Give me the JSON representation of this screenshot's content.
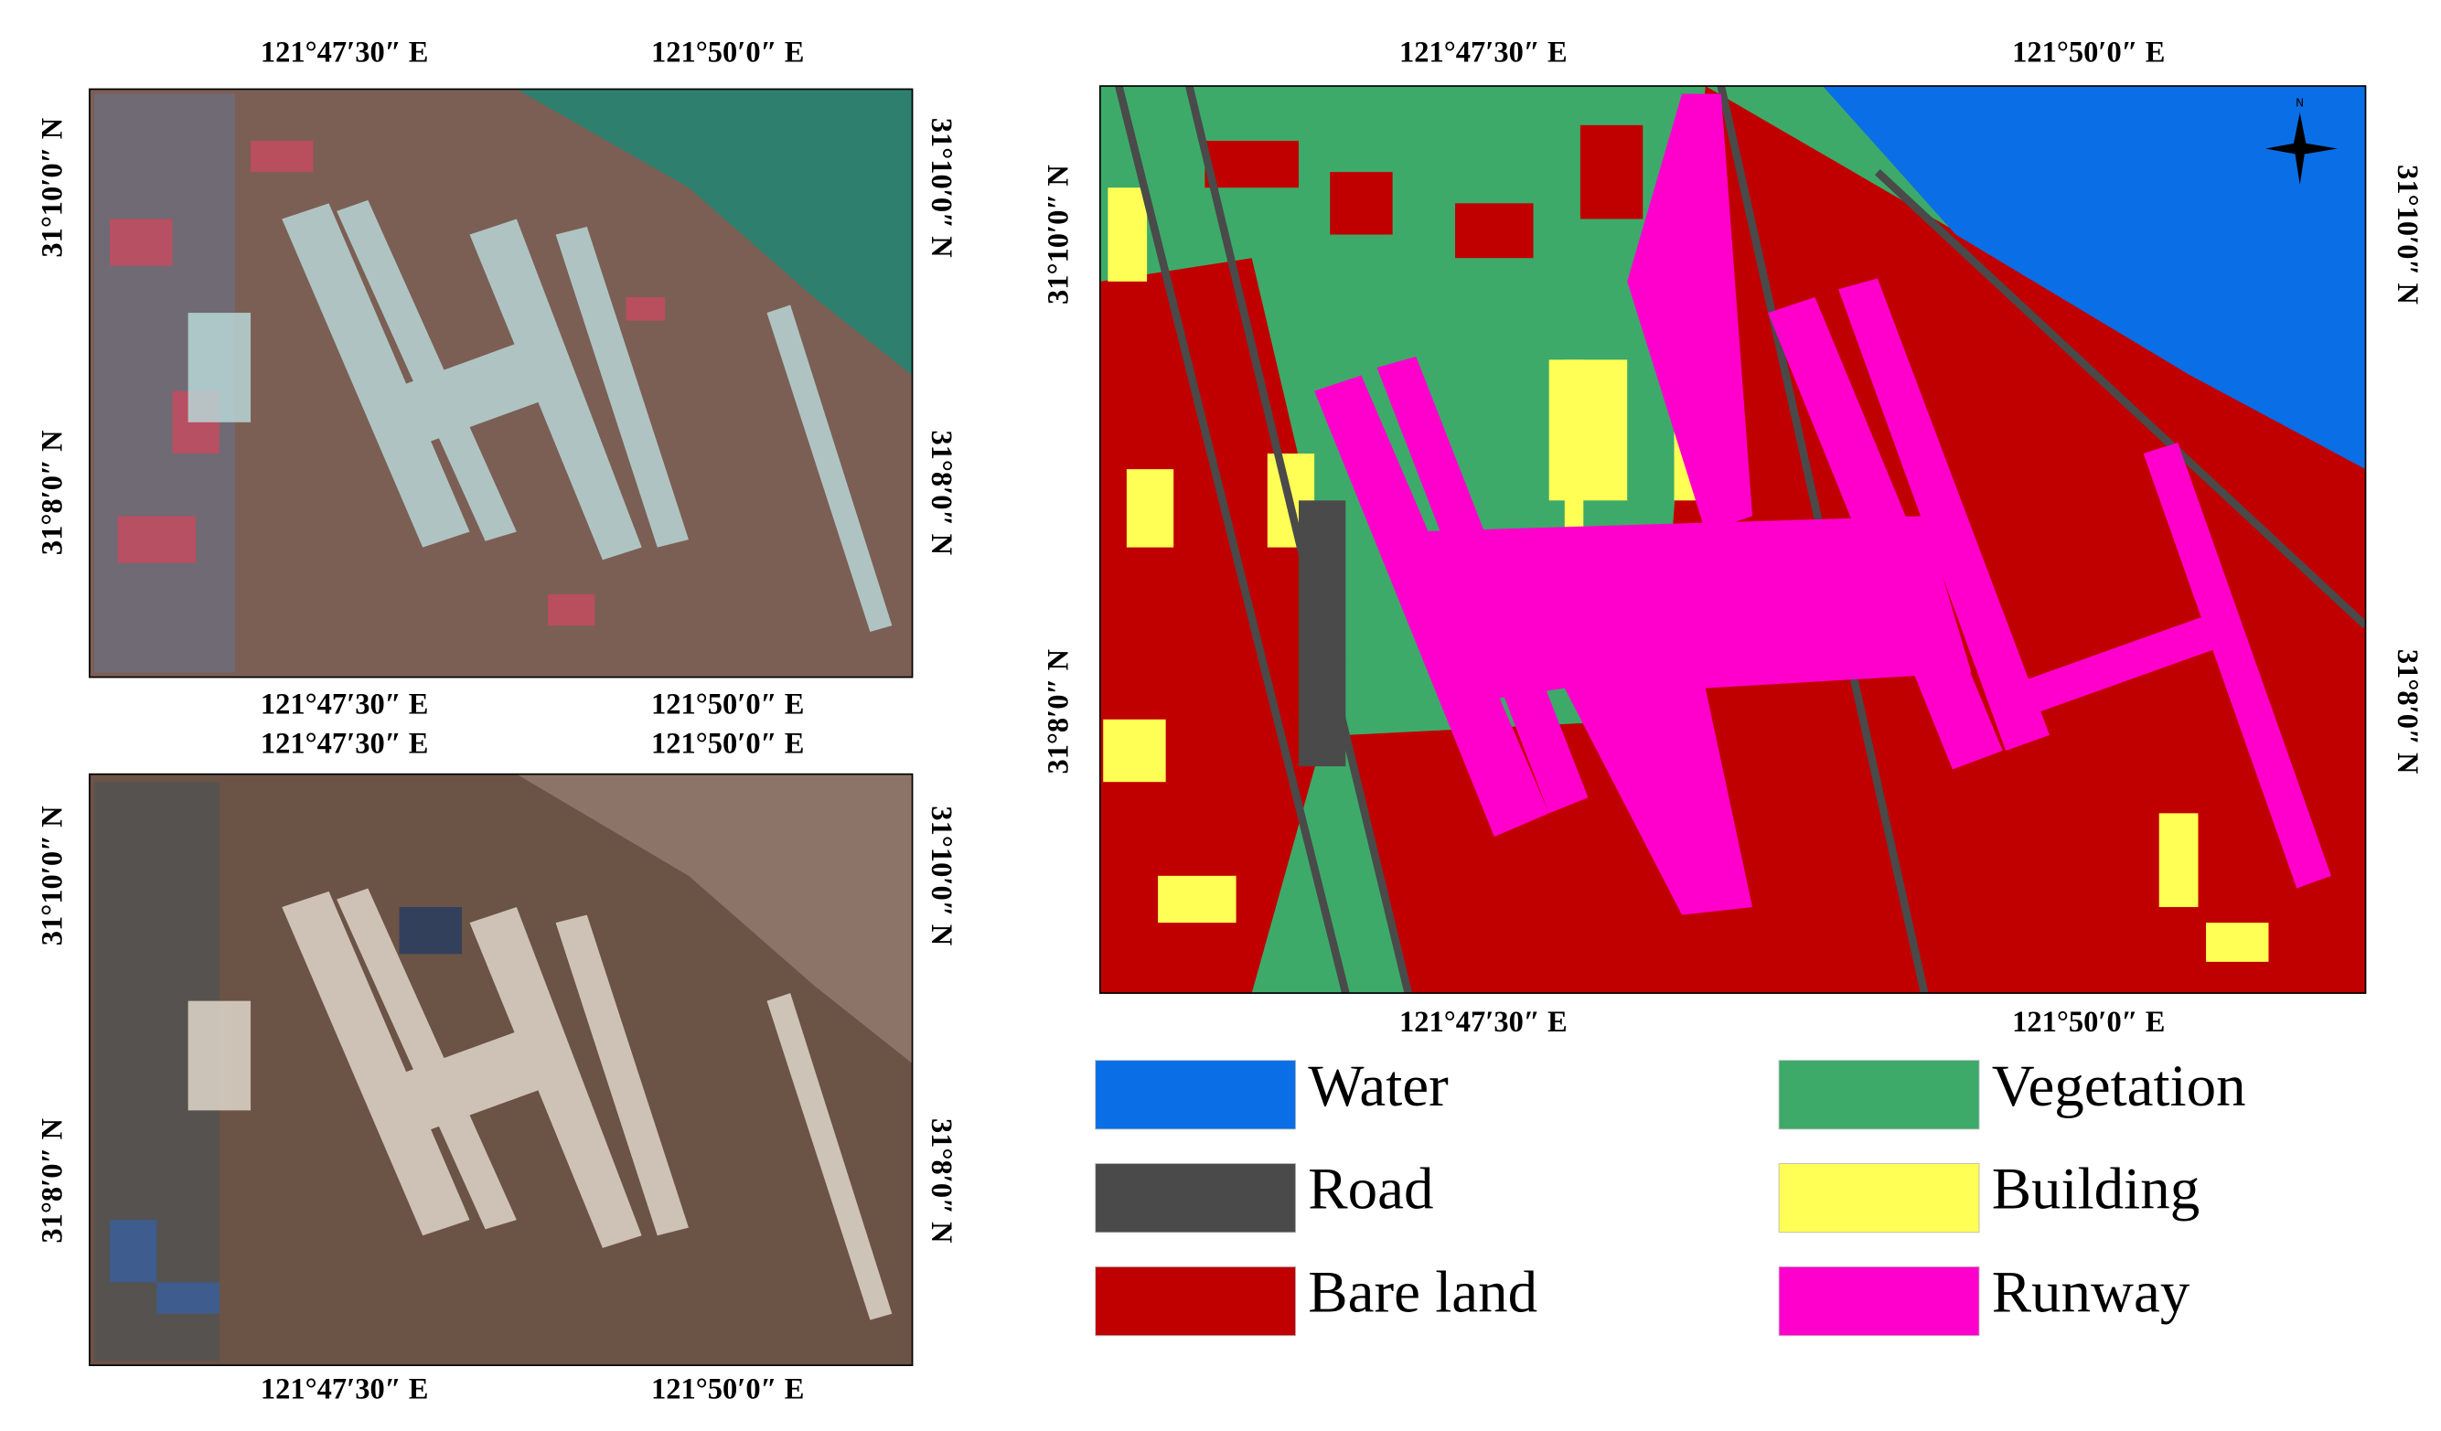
{
  "false_color_panel": {
    "top_labels": [
      "121°47′30″ E",
      "121°50′0″ E"
    ],
    "bottom_labels": [
      "121°47′30″ E",
      "121°50′0″ E"
    ],
    "left_labels": [
      "31°10′0″ N",
      "31°8′0″ N"
    ],
    "right_labels": [
      "31°10′0″ N",
      "31°8′0″ N"
    ]
  },
  "true_color_panel": {
    "top_labels": [
      "121°47′30″ E",
      "121°50′0″ E"
    ],
    "bottom_labels": [
      "121°47′30″ E",
      "121°50′0″ E"
    ],
    "left_labels": [
      "31°10′0″ N",
      "31°8′0″ N"
    ],
    "right_labels": [
      "31°10′0″ N",
      "31°8′0″ N"
    ]
  },
  "classification_map": {
    "top_labels": [
      "121°47′30″ E",
      "121°50′0″ E"
    ],
    "bottom_labels": [
      "121°47′30″ E",
      "121°50′0″ E"
    ],
    "left_labels": [
      "31°10′0″ N",
      "31°8′0″ N"
    ],
    "right_labels": [
      "31°10′0″ N",
      "31°8′0″ N"
    ]
  },
  "legend": [
    {
      "label": "Water",
      "color": "#0a6ee6"
    },
    {
      "label": "Vegetation",
      "color": "#3daa6a"
    },
    {
      "label": "Road",
      "color": "#4a4a4a"
    },
    {
      "label": "Building",
      "color": "#ffff55"
    },
    {
      "label": "Bare land",
      "color": "#c00000"
    },
    {
      "label": "Runway",
      "color": "#ff00cc"
    }
  ]
}
